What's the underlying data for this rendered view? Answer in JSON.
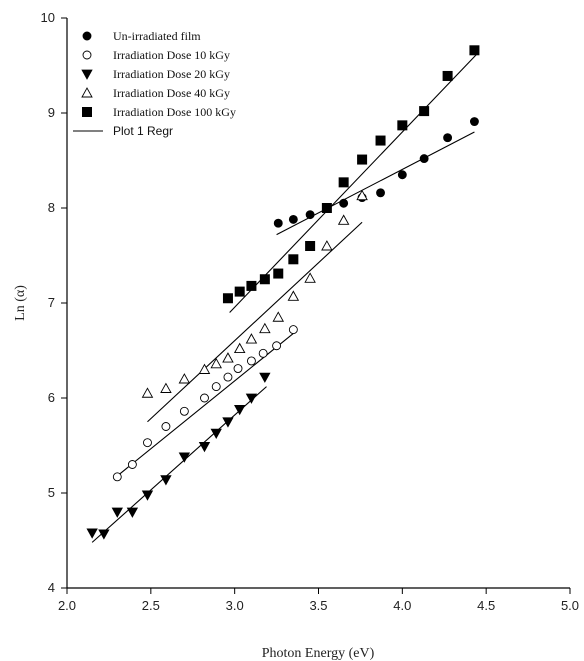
{
  "chart_data": {
    "type": "scatter",
    "title": "",
    "xlabel": "Photon Energy (eV)",
    "ylabel": "Ln (α)",
    "xlim": [
      2.0,
      5.0
    ],
    "ylim": [
      4,
      10
    ],
    "xticks": [
      "2.0",
      "2.5",
      "3.0",
      "3.5",
      "4.0",
      "4.5",
      "5.0"
    ],
    "yticks": [
      "4",
      "5",
      "6",
      "7",
      "8",
      "9",
      "10"
    ],
    "grid": false,
    "legend_position": "top-left",
    "series": [
      {
        "name": "Un-irradiated film",
        "marker": "filled-circle",
        "color": "#000000",
        "points": [
          [
            3.26,
            7.84
          ],
          [
            3.35,
            7.88
          ],
          [
            3.45,
            7.93
          ],
          [
            3.55,
            8.0
          ],
          [
            3.65,
            8.05
          ],
          [
            3.76,
            8.11
          ],
          [
            3.87,
            8.16
          ],
          [
            4.0,
            8.35
          ],
          [
            4.13,
            8.52
          ],
          [
            4.27,
            8.74
          ],
          [
            4.43,
            8.91
          ]
        ],
        "regression": [
          [
            3.25,
            7.72
          ],
          [
            4.43,
            8.8
          ]
        ]
      },
      {
        "name": "Irradiation Dose 10 kGy",
        "marker": "open-circle",
        "color": "#000000",
        "points": [
          [
            2.3,
            5.17
          ],
          [
            2.39,
            5.3
          ],
          [
            2.48,
            5.53
          ],
          [
            2.59,
            5.7
          ],
          [
            2.7,
            5.86
          ],
          [
            2.82,
            6.0
          ],
          [
            2.89,
            6.12
          ],
          [
            2.96,
            6.22
          ],
          [
            3.02,
            6.31
          ],
          [
            3.1,
            6.39
          ],
          [
            3.17,
            6.47
          ],
          [
            3.25,
            6.55
          ],
          [
            3.35,
            6.72
          ]
        ],
        "regression": [
          [
            2.3,
            5.18
          ],
          [
            3.35,
            6.68
          ]
        ]
      },
      {
        "name": "Irradiation Dose 20 kGy",
        "marker": "filled-triangle-down",
        "color": "#000000",
        "points": [
          [
            2.15,
            4.58
          ],
          [
            2.22,
            4.57
          ],
          [
            2.3,
            4.8
          ],
          [
            2.39,
            4.8
          ],
          [
            2.48,
            4.98
          ],
          [
            2.59,
            5.14
          ],
          [
            2.7,
            5.38
          ],
          [
            2.82,
            5.49
          ],
          [
            2.89,
            5.63
          ],
          [
            2.96,
            5.75
          ],
          [
            3.03,
            5.88
          ],
          [
            3.1,
            6.0
          ],
          [
            3.18,
            6.22
          ]
        ],
        "regression": [
          [
            2.15,
            4.48
          ],
          [
            3.19,
            6.12
          ]
        ]
      },
      {
        "name": "Irradiation Dose 40 kGy",
        "marker": "open-triangle-up",
        "color": "#000000",
        "points": [
          [
            2.48,
            6.05
          ],
          [
            2.59,
            6.1
          ],
          [
            2.7,
            6.2
          ],
          [
            2.82,
            6.3
          ],
          [
            2.89,
            6.36
          ],
          [
            2.96,
            6.42
          ],
          [
            3.03,
            6.52
          ],
          [
            3.1,
            6.62
          ],
          [
            3.18,
            6.73
          ],
          [
            3.26,
            6.85
          ],
          [
            3.35,
            7.07
          ],
          [
            3.45,
            7.26
          ],
          [
            3.55,
            7.6
          ],
          [
            3.65,
            7.87
          ],
          [
            3.76,
            8.13
          ]
        ],
        "regression": [
          [
            2.48,
            5.75
          ],
          [
            3.76,
            7.85
          ]
        ]
      },
      {
        "name": "Irradiation  Dose 100 kGy",
        "marker": "filled-square",
        "color": "#000000",
        "points": [
          [
            2.96,
            7.05
          ],
          [
            3.03,
            7.12
          ],
          [
            3.1,
            7.18
          ],
          [
            3.18,
            7.25
          ],
          [
            3.26,
            7.31
          ],
          [
            3.35,
            7.46
          ],
          [
            3.45,
            7.6
          ],
          [
            3.55,
            8.0
          ],
          [
            3.65,
            8.27
          ],
          [
            3.76,
            8.51
          ],
          [
            3.87,
            8.71
          ],
          [
            4.0,
            8.87
          ],
          [
            4.13,
            9.02
          ],
          [
            4.27,
            9.39
          ],
          [
            4.43,
            9.66
          ]
        ],
        "regression": [
          [
            2.97,
            6.9
          ],
          [
            4.45,
            9.63
          ]
        ]
      }
    ],
    "regression_legend": "Plot 1 Regr"
  }
}
